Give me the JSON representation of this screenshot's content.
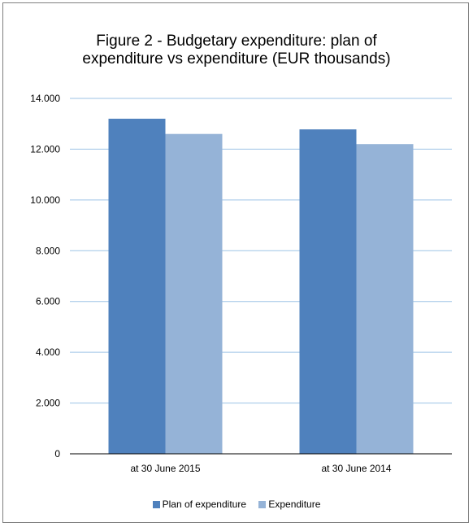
{
  "colors": {
    "plan": "#4f81bd",
    "expenditure": "#95b3d7",
    "grid": "#9dc3e6",
    "axis": "#000000"
  },
  "chart_data": {
    "type": "bar",
    "title_lines": [
      "Figure 2 - Budgetary expenditure: plan of",
      "expenditure vs expenditure (EUR thousands)"
    ],
    "categories": [
      "at 30 June 2015",
      "at 30 June 2014"
    ],
    "series": [
      {
        "name": "Plan of expenditure",
        "values": [
          13200,
          12780
        ]
      },
      {
        "name": "Expenditure",
        "values": [
          12600,
          12200
        ]
      }
    ],
    "ylim": [
      0,
      14000
    ],
    "yticks": [
      0,
      2000,
      4000,
      6000,
      8000,
      10000,
      12000,
      14000
    ],
    "ytick_labels": [
      "0",
      "2.000",
      "4.000",
      "6.000",
      "8.000",
      "10.000",
      "12.000",
      "14.000"
    ],
    "grid": true,
    "legend_position": "bottom"
  }
}
